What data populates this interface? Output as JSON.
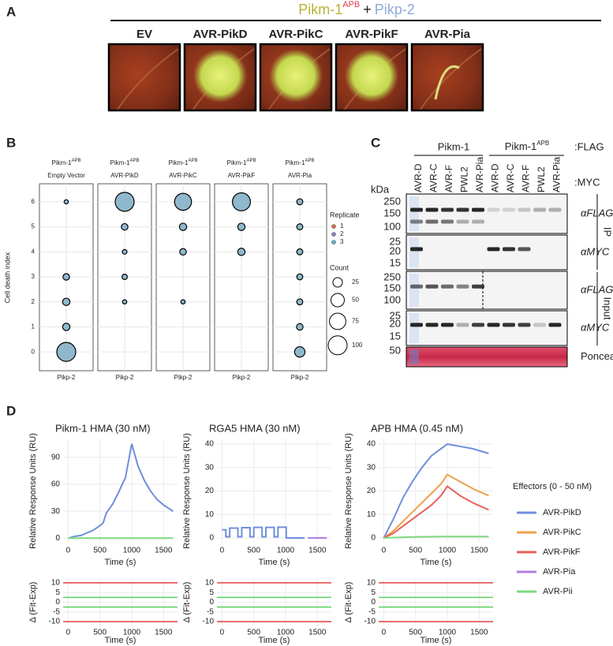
{
  "panel_a": {
    "label": "A",
    "title": [
      "Pikm-1",
      "APB",
      "+",
      "Pikp-2"
    ],
    "images": [
      "EV",
      "AVR-PikD",
      "AVR-PikC",
      "AVR-PikF",
      "AVR-Pia"
    ]
  },
  "panel_b": {
    "label": "B",
    "y_label": "Cell death index",
    "ylim": [
      -0.5,
      6.5
    ],
    "yticks": [
      0,
      1,
      2,
      3,
      4,
      5,
      6
    ],
    "facets": [
      {
        "title": [
          "Pikm-1",
          "APB"
        ],
        "subtitle": "Empty Vector",
        "x_label": "Pikp-2",
        "counts": [
          100,
          15,
          15,
          12,
          null,
          null,
          5
        ]
      },
      {
        "title": [
          "Pikm-1",
          "APB"
        ],
        "subtitle": "AVR-PikD",
        "x_label": "Pikp-2",
        "counts": [
          null,
          null,
          5,
          8,
          6,
          12,
          100
        ]
      },
      {
        "title": [
          "Pikm-1",
          "APB"
        ],
        "subtitle": "AVR-PikC",
        "x_label": "Pikp-2",
        "counts": [
          null,
          null,
          5,
          null,
          12,
          15,
          80
        ]
      },
      {
        "title": [
          "Pikm-1",
          "APB"
        ],
        "subtitle": "AVR-PikF",
        "x_label": "Pikp-2",
        "counts": [
          null,
          null,
          null,
          null,
          15,
          15,
          90
        ]
      },
      {
        "title": [
          "Pikm-1",
          "APB"
        ],
        "subtitle": "AVR-Pia",
        "x_label": "Pikp-2",
        "counts": [
          30,
          12,
          10,
          10,
          10,
          10,
          10
        ]
      }
    ],
    "legend": {
      "replicate_title": "Replicate",
      "replicates": [
        1,
        2,
        3
      ],
      "count_title": "Count",
      "counts": [
        25,
        50,
        75,
        100
      ]
    }
  },
  "panel_c": {
    "label": "C",
    "groups": [
      "Pikm-1",
      [
        "Pikm-1",
        "APB"
      ]
    ],
    "tag_flag": ":FLAG",
    "tag_myc": ":MYC",
    "unit": "kDa",
    "lanes": [
      "AVR-D",
      "AVR-C",
      "AVR-F",
      "PWL2",
      "AVR-Pia",
      "AVR-D",
      "AVR-C",
      "AVR-F",
      "PWL2",
      "AVR-Pia"
    ],
    "blots": [
      {
        "antibody": "αFLAG",
        "markers": [
          250,
          150,
          100
        ]
      },
      {
        "antibody": "αMYC",
        "markers": [
          25,
          20,
          15
        ]
      },
      {
        "antibody": "αFLAG",
        "markers": [
          250,
          150,
          100
        ]
      },
      {
        "antibody": "αMYC",
        "markers": [
          25,
          20,
          15
        ]
      },
      {
        "antibody": "Ponceau",
        "markers": [
          50
        ]
      }
    ],
    "sections": [
      "IP",
      "Input"
    ]
  },
  "panel_d": {
    "label": "D",
    "legend": {
      "title": "Effectors (0 - 50 nM)",
      "items": [
        {
          "name": "AVR-PikD",
          "color": "#6f8fdc"
        },
        {
          "name": "AVR-PikC",
          "color": "#f0a04b"
        },
        {
          "name": "AVR-PikF",
          "color": "#e8605a"
        },
        {
          "name": "AVR-Pia",
          "color": "#b07fe0"
        },
        {
          "name": "AVR-Pii",
          "color": "#7fd77f"
        }
      ]
    }
  },
  "chart_data": [
    {
      "type": "line",
      "title": "Pikm-1 HMA (30 nM)",
      "y_label": "Relative Response Units (RU)",
      "x_label": "Time (s)",
      "xlim": [
        -80,
        1720
      ],
      "xticks": [
        0,
        500,
        1000,
        1500
      ],
      "ylim": [
        -5,
        110
      ],
      "yticks": [
        0,
        30,
        60,
        90
      ],
      "grid": true,
      "series": [
        {
          "name": "AVR-PikD",
          "color": "#6f8fdc",
          "x": [
            0,
            100,
            200,
            300,
            400,
            500,
            550,
            600,
            700,
            800,
            850,
            900,
            1000,
            1100,
            1200,
            1300,
            1400,
            1500,
            1650
          ],
          "values": [
            0,
            2,
            3,
            6,
            9,
            14,
            17,
            28,
            38,
            52,
            60,
            67,
            105,
            80,
            64,
            52,
            43,
            37,
            30
          ]
        },
        {
          "name": "AVR-Pii",
          "color": "#7fd77f",
          "x": [
            0,
            1650
          ],
          "values": [
            0,
            0
          ]
        }
      ],
      "residual": {
        "y_label": "Δ (Fit-Exp)",
        "x_label": "Time (s)",
        "ylim": [
          -12,
          12
        ],
        "yticks": [
          -10,
          -5,
          0,
          5,
          10
        ],
        "reference_lines": [
          {
            "value": -10,
            "color": "#e04040"
          },
          {
            "value": 10,
            "color": "#e04040"
          },
          {
            "value": -2.5,
            "color": "#5ccf5c"
          },
          {
            "value": 2.5,
            "color": "#5ccf5c"
          }
        ]
      }
    },
    {
      "type": "line",
      "title": "RGA5 HMA (30 nM)",
      "y_label": "Relative Response Units (RU)",
      "x_label": "Time (s)",
      "xlim": [
        -80,
        1720
      ],
      "xticks": [
        0,
        500,
        1000,
        1500
      ],
      "ylim": [
        -2,
        42
      ],
      "yticks": [
        0,
        10,
        20,
        30,
        40
      ],
      "grid": true,
      "series": [
        {
          "name": "AVR-PikD",
          "color": "#6f8fdc",
          "x": [
            0,
            60,
            60,
            120,
            120,
            250,
            250,
            310,
            310,
            440,
            440,
            500,
            500,
            630,
            630,
            690,
            690,
            820,
            820,
            880,
            880,
            1010,
            1010,
            1300
          ],
          "values": [
            3.5,
            3.5,
            0.5,
            0.5,
            4.2,
            4.2,
            0.5,
            0.5,
            4.4,
            4.4,
            0.5,
            0.5,
            4.5,
            4.5,
            0.5,
            0.5,
            4.5,
            4.5,
            0.5,
            0.5,
            4.6,
            4.6,
            0,
            0
          ]
        },
        {
          "name": "AVR-Pia",
          "color": "#b07fe0",
          "x": [
            1350,
            1650
          ],
          "values": [
            0,
            0
          ]
        }
      ],
      "residual": {
        "y_label": "Δ (Fit-Exp)",
        "x_label": "Time (s)",
        "ylim": [
          -12,
          12
        ],
        "yticks": [
          -10,
          -5,
          0,
          5,
          10
        ],
        "reference_lines": [
          {
            "value": -10,
            "color": "#e04040"
          },
          {
            "value": 10,
            "color": "#e04040"
          },
          {
            "value": -2.5,
            "color": "#5ccf5c"
          },
          {
            "value": 2.5,
            "color": "#5ccf5c"
          }
        ]
      }
    },
    {
      "type": "line",
      "title": "APB HMA (0.45 nM)",
      "y_label": "Relative Response Units (RU)",
      "x_label": "Time (s)",
      "xlim": [
        -80,
        1720
      ],
      "xticks": [
        0,
        500,
        1000,
        1500
      ],
      "ylim": [
        -2,
        42
      ],
      "yticks": [
        0,
        10,
        20,
        30,
        40
      ],
      "grid": true,
      "series": [
        {
          "name": "AVR-PikD",
          "color": "#6f8fdc",
          "x": [
            0,
            150,
            300,
            450,
            600,
            750,
            900,
            1000,
            1200,
            1400,
            1650
          ],
          "values": [
            0,
            8,
            17,
            24,
            30,
            35,
            38,
            40,
            39,
            38,
            36
          ]
        },
        {
          "name": "AVR-PikC",
          "color": "#f0a04b",
          "x": [
            0,
            150,
            300,
            450,
            600,
            750,
            900,
            1000,
            1200,
            1400,
            1650
          ],
          "values": [
            0,
            3,
            7,
            11,
            15,
            19,
            23,
            27,
            24,
            21,
            18
          ]
        },
        {
          "name": "AVR-PikF",
          "color": "#e8605a",
          "x": [
            0,
            150,
            300,
            450,
            600,
            750,
            900,
            1000,
            1200,
            1400,
            1650
          ],
          "values": [
            0,
            2,
            5,
            8,
            11,
            14,
            18,
            22,
            18,
            15,
            12
          ]
        },
        {
          "name": "AVR-Pii",
          "color": "#7fd77f",
          "x": [
            0,
            150,
            300,
            450,
            600,
            750,
            900,
            1000,
            1200,
            1400,
            1650
          ],
          "values": [
            0,
            0.2,
            0.3,
            0.4,
            0.5,
            0.5,
            0.6,
            0.6,
            0.6,
            0.6,
            0.6
          ]
        }
      ],
      "residual": {
        "y_label": "Δ (Fit-Exp)",
        "x_label": "Time (s)",
        "ylim": [
          -12,
          12
        ],
        "yticks": [
          -10,
          -5,
          0,
          5,
          10
        ],
        "reference_lines": [
          {
            "value": -10,
            "color": "#e04040"
          },
          {
            "value": 10,
            "color": "#e04040"
          },
          {
            "value": -2.5,
            "color": "#5ccf5c"
          },
          {
            "value": 2.5,
            "color": "#5ccf5c"
          }
        ]
      }
    }
  ]
}
